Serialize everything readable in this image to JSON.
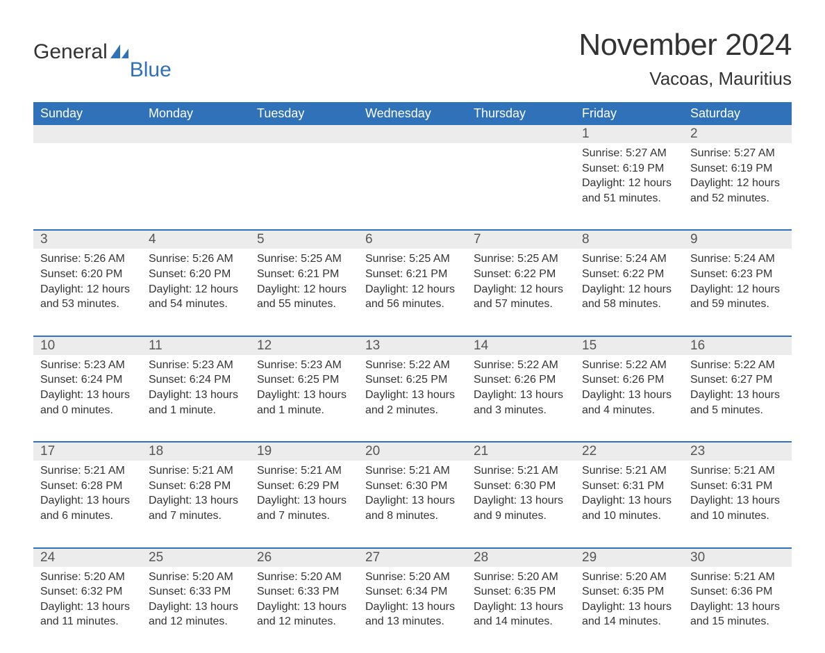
{
  "logo": {
    "text1": "General",
    "text2": "Blue",
    "icon_color": "#2f72b9"
  },
  "title": "November 2024",
  "location": "Vacoas, Mauritius",
  "colors": {
    "header_bg": "#2f72b9",
    "header_text": "#ffffff",
    "daynum_bg": "#ececec",
    "week_border": "#2f72b9",
    "body_text": "#333333",
    "page_bg": "#ffffff"
  },
  "typography": {
    "title_fontsize": 44,
    "location_fontsize": 26,
    "dow_fontsize": 18,
    "daynum_fontsize": 19,
    "body_fontsize": 16
  },
  "dow": [
    "Sunday",
    "Monday",
    "Tuesday",
    "Wednesday",
    "Thursday",
    "Friday",
    "Saturday"
  ],
  "weeks": [
    [
      null,
      null,
      null,
      null,
      null,
      {
        "n": "1",
        "sr": "Sunrise: 5:27 AM",
        "ss": "Sunset: 6:19 PM",
        "dl": "Daylight: 12 hours and 51 minutes."
      },
      {
        "n": "2",
        "sr": "Sunrise: 5:27 AM",
        "ss": "Sunset: 6:19 PM",
        "dl": "Daylight: 12 hours and 52 minutes."
      }
    ],
    [
      {
        "n": "3",
        "sr": "Sunrise: 5:26 AM",
        "ss": "Sunset: 6:20 PM",
        "dl": "Daylight: 12 hours and 53 minutes."
      },
      {
        "n": "4",
        "sr": "Sunrise: 5:26 AM",
        "ss": "Sunset: 6:20 PM",
        "dl": "Daylight: 12 hours and 54 minutes."
      },
      {
        "n": "5",
        "sr": "Sunrise: 5:25 AM",
        "ss": "Sunset: 6:21 PM",
        "dl": "Daylight: 12 hours and 55 minutes."
      },
      {
        "n": "6",
        "sr": "Sunrise: 5:25 AM",
        "ss": "Sunset: 6:21 PM",
        "dl": "Daylight: 12 hours and 56 minutes."
      },
      {
        "n": "7",
        "sr": "Sunrise: 5:25 AM",
        "ss": "Sunset: 6:22 PM",
        "dl": "Daylight: 12 hours and 57 minutes."
      },
      {
        "n": "8",
        "sr": "Sunrise: 5:24 AM",
        "ss": "Sunset: 6:22 PM",
        "dl": "Daylight: 12 hours and 58 minutes."
      },
      {
        "n": "9",
        "sr": "Sunrise: 5:24 AM",
        "ss": "Sunset: 6:23 PM",
        "dl": "Daylight: 12 hours and 59 minutes."
      }
    ],
    [
      {
        "n": "10",
        "sr": "Sunrise: 5:23 AM",
        "ss": "Sunset: 6:24 PM",
        "dl": "Daylight: 13 hours and 0 minutes."
      },
      {
        "n": "11",
        "sr": "Sunrise: 5:23 AM",
        "ss": "Sunset: 6:24 PM",
        "dl": "Daylight: 13 hours and 1 minute."
      },
      {
        "n": "12",
        "sr": "Sunrise: 5:23 AM",
        "ss": "Sunset: 6:25 PM",
        "dl": "Daylight: 13 hours and 1 minute."
      },
      {
        "n": "13",
        "sr": "Sunrise: 5:22 AM",
        "ss": "Sunset: 6:25 PM",
        "dl": "Daylight: 13 hours and 2 minutes."
      },
      {
        "n": "14",
        "sr": "Sunrise: 5:22 AM",
        "ss": "Sunset: 6:26 PM",
        "dl": "Daylight: 13 hours and 3 minutes."
      },
      {
        "n": "15",
        "sr": "Sunrise: 5:22 AM",
        "ss": "Sunset: 6:26 PM",
        "dl": "Daylight: 13 hours and 4 minutes."
      },
      {
        "n": "16",
        "sr": "Sunrise: 5:22 AM",
        "ss": "Sunset: 6:27 PM",
        "dl": "Daylight: 13 hours and 5 minutes."
      }
    ],
    [
      {
        "n": "17",
        "sr": "Sunrise: 5:21 AM",
        "ss": "Sunset: 6:28 PM",
        "dl": "Daylight: 13 hours and 6 minutes."
      },
      {
        "n": "18",
        "sr": "Sunrise: 5:21 AM",
        "ss": "Sunset: 6:28 PM",
        "dl": "Daylight: 13 hours and 7 minutes."
      },
      {
        "n": "19",
        "sr": "Sunrise: 5:21 AM",
        "ss": "Sunset: 6:29 PM",
        "dl": "Daylight: 13 hours and 7 minutes."
      },
      {
        "n": "20",
        "sr": "Sunrise: 5:21 AM",
        "ss": "Sunset: 6:30 PM",
        "dl": "Daylight: 13 hours and 8 minutes."
      },
      {
        "n": "21",
        "sr": "Sunrise: 5:21 AM",
        "ss": "Sunset: 6:30 PM",
        "dl": "Daylight: 13 hours and 9 minutes."
      },
      {
        "n": "22",
        "sr": "Sunrise: 5:21 AM",
        "ss": "Sunset: 6:31 PM",
        "dl": "Daylight: 13 hours and 10 minutes."
      },
      {
        "n": "23",
        "sr": "Sunrise: 5:21 AM",
        "ss": "Sunset: 6:31 PM",
        "dl": "Daylight: 13 hours and 10 minutes."
      }
    ],
    [
      {
        "n": "24",
        "sr": "Sunrise: 5:20 AM",
        "ss": "Sunset: 6:32 PM",
        "dl": "Daylight: 13 hours and 11 minutes."
      },
      {
        "n": "25",
        "sr": "Sunrise: 5:20 AM",
        "ss": "Sunset: 6:33 PM",
        "dl": "Daylight: 13 hours and 12 minutes."
      },
      {
        "n": "26",
        "sr": "Sunrise: 5:20 AM",
        "ss": "Sunset: 6:33 PM",
        "dl": "Daylight: 13 hours and 12 minutes."
      },
      {
        "n": "27",
        "sr": "Sunrise: 5:20 AM",
        "ss": "Sunset: 6:34 PM",
        "dl": "Daylight: 13 hours and 13 minutes."
      },
      {
        "n": "28",
        "sr": "Sunrise: 5:20 AM",
        "ss": "Sunset: 6:35 PM",
        "dl": "Daylight: 13 hours and 14 minutes."
      },
      {
        "n": "29",
        "sr": "Sunrise: 5:20 AM",
        "ss": "Sunset: 6:35 PM",
        "dl": "Daylight: 13 hours and 14 minutes."
      },
      {
        "n": "30",
        "sr": "Sunrise: 5:21 AM",
        "ss": "Sunset: 6:36 PM",
        "dl": "Daylight: 13 hours and 15 minutes."
      }
    ]
  ]
}
